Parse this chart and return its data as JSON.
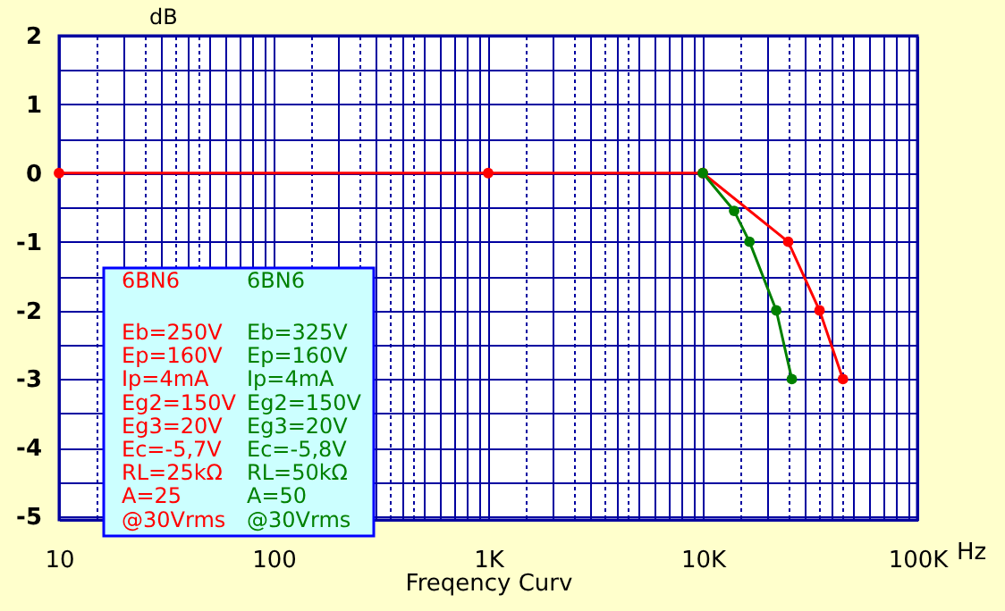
{
  "chart_data": {
    "type": "line",
    "xlabel": "Freqency Curv",
    "ylabel": "dB",
    "log": "x",
    "grid": true,
    "marker": "circle",
    "line_style": "solid",
    "legend": "bottom left",
    "xlim": [
      10,
      100000
    ],
    "ylim": [
      -5.05,
      2
    ],
    "xticks": [
      10,
      {
        "value": 15,
        "label": null
      },
      {
        "value": 20,
        "label": null
      },
      {
        "value": 25,
        "label": null
      },
      {
        "value": 30,
        "label": null
      },
      {
        "value": 35,
        "label": null
      },
      {
        "value": 40,
        "label": null
      },
      {
        "value": 45,
        "label": null
      },
      {
        "value": 50,
        "label": null
      },
      {
        "value": 60,
        "label": null
      },
      {
        "value": 70,
        "label": null
      },
      {
        "value": 80,
        "label": null
      },
      {
        "value": 90,
        "label": null
      },
      100,
      {
        "value": 150,
        "label": null
      },
      {
        "value": 200,
        "label": null
      },
      {
        "value": 250,
        "label": null
      },
      {
        "value": 300,
        "label": null
      },
      {
        "value": 350,
        "label": null
      },
      {
        "value": 400,
        "label": null
      },
      {
        "value": 450,
        "label": null
      },
      {
        "value": 500,
        "label": null
      },
      {
        "value": 600,
        "label": null
      },
      {
        "value": 700,
        "label": null
      },
      {
        "value": 800,
        "label": null
      },
      {
        "value": 900,
        "label": null
      },
      {
        "value": 1000,
        "label": "1K"
      },
      {
        "value": 1500,
        "label": null
      },
      {
        "value": 2000,
        "label": null
      },
      {
        "value": 2500,
        "label": null
      },
      {
        "value": 3000,
        "label": null
      },
      {
        "value": 3500,
        "label": null
      },
      {
        "value": 4000,
        "label": null
      },
      {
        "value": 4500,
        "label": null
      },
      {
        "value": 5000,
        "label": null
      },
      {
        "value": 6000,
        "label": null
      },
      {
        "value": 7000,
        "label": null
      },
      {
        "value": 8000,
        "label": null
      },
      {
        "value": 9000,
        "label": null
      },
      {
        "value": 10000,
        "label": "10K"
      },
      {
        "value": 15000,
        "label": null
      },
      {
        "value": 20000,
        "label": null
      },
      {
        "value": 25000,
        "label": null
      },
      {
        "value": 30000,
        "label": null
      },
      {
        "value": 35000,
        "label": null
      },
      {
        "value": 40000,
        "label": null
      },
      {
        "value": 45000,
        "label": null
      },
      {
        "value": 50000,
        "label": null
      },
      {
        "value": 60000,
        "label": null
      },
      {
        "value": 70000,
        "label": null
      },
      {
        "value": 80000,
        "label": null
      },
      {
        "value": 90000,
        "label": null
      },
      {
        "value": 100000,
        "label": "100K"
      }
    ],
    "yticks": [
      -5,
      {
        "value": -4.5,
        "label": null
      },
      -4,
      {
        "value": -3.5,
        "label": null
      },
      -3,
      {
        "value": -2.5,
        "label": null
      },
      -2,
      {
        "value": -1.5,
        "label": null
      },
      -1,
      {
        "value": -0.5,
        "label": null
      },
      0,
      {
        "value": 0.5,
        "label": null
      },
      1,
      {
        "value": 1.5,
        "label": null
      },
      2
    ],
    "series": [
      {
        "name": "6BN6",
        "color": "#ff0000",
        "x": [
          10,
          1000,
          10000,
          25000,
          35000,
          45000
        ],
        "values": [
          0,
          0,
          0,
          -1,
          -2,
          -3
        ]
      },
      {
        "name": "6BN6",
        "color": "#008000",
        "x": [
          10000,
          14000,
          16500,
          22000,
          26000
        ],
        "values": [
          0,
          -0.55,
          -1,
          -2,
          -3
        ]
      }
    ],
    "annotations": [
      "Eb=250V",
      "Ep=160V",
      "Ip=4mA",
      "Eg2=150V",
      "Eg3=20V",
      "Ec=-5,7V",
      "RL=25kΩ",
      "A=25",
      "@30Vrms",
      "Eb=325V",
      "Ep=160V",
      "Ip=4mA",
      "Eg2=150V",
      "Eg3=20V",
      "Ec=-5,8V",
      "RL=50kΩ",
      "A=50",
      "@30Vrms",
      "Hz"
    ]
  }
}
